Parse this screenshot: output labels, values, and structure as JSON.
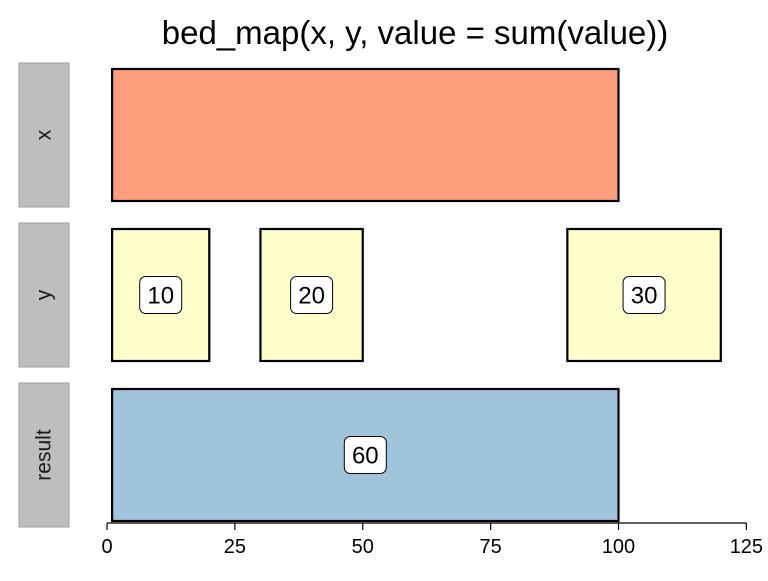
{
  "title": "bed_map(x, y, value = sum(value))",
  "colors": {
    "x_fill": "#FC9D7C",
    "y_fill": "#FFFFCC",
    "result_fill": "#A0C4DC",
    "strip_bg": "#BEBEBE",
    "strip_border": "#9E9E9E",
    "outline": "#000000"
  },
  "chart_data": {
    "type": "interval-tracks",
    "title": "bed_map(x, y, value = sum(value))",
    "xlim": [
      0,
      125
    ],
    "x_ticks": [
      0,
      25,
      50,
      75,
      100,
      125
    ],
    "x_tick_labels": [
      "0",
      "25",
      "50",
      "75",
      "100",
      "125"
    ],
    "tracks": [
      {
        "name": "x",
        "intervals": [
          {
            "start": 1,
            "end": 100,
            "label": ""
          }
        ]
      },
      {
        "name": "y",
        "intervals": [
          {
            "start": 1,
            "end": 20,
            "label": "10"
          },
          {
            "start": 30,
            "end": 50,
            "label": "20"
          },
          {
            "start": 90,
            "end": 120,
            "label": "30"
          }
        ]
      },
      {
        "name": "result",
        "intervals": [
          {
            "start": 1,
            "end": 100,
            "label": "60"
          }
        ]
      }
    ]
  }
}
